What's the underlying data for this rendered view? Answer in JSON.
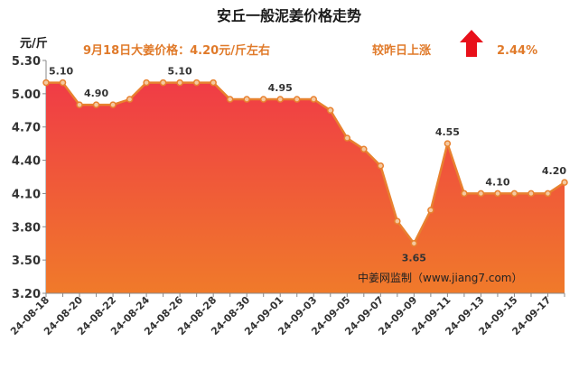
{
  "header": {
    "title": "安丘一般泥姜价格走势",
    "unit": "元/斤",
    "price_note": "9月18日大姜价格：4.20元/斤左右",
    "change_label": "较昨日上涨",
    "change_value": "2.44%",
    "change_direction": "up",
    "source": "中姜网监制（www.jiang7.com）"
  },
  "colors": {
    "line": "#e8812f",
    "area_top": "#f03c46",
    "area_bottom": "#f07a2a",
    "accent_red": "#e8101a",
    "header_text": "#e07a2a"
  },
  "chart_data": {
    "type": "area",
    "ylim": [
      3.2,
      5.3
    ],
    "yticks": [
      "3.20",
      "3.50",
      "3.80",
      "4.10",
      "4.40",
      "4.70",
      "5.00",
      "5.30"
    ],
    "xtick_labels": [
      "24-08-18",
      "24-08-20",
      "24-08-22",
      "24-08-24",
      "24-08-26",
      "24-08-28",
      "24-08-30",
      "24-09-01",
      "24-09-03",
      "24-09-05",
      "24-09-07",
      "24-09-09",
      "24-09-11",
      "24-09-13",
      "24-09-15",
      "24-09-17"
    ],
    "x": [
      "24-08-18",
      "24-08-19",
      "24-08-20",
      "24-08-21",
      "24-08-22",
      "24-08-23",
      "24-08-24",
      "24-08-25",
      "24-08-26",
      "24-08-27",
      "24-08-28",
      "24-08-29",
      "24-08-30",
      "24-08-31",
      "24-09-01",
      "24-09-02",
      "24-09-03",
      "24-09-04",
      "24-09-05",
      "24-09-06",
      "24-09-07",
      "24-09-08",
      "24-09-09",
      "24-09-10",
      "24-09-11",
      "24-09-12",
      "24-09-13",
      "24-09-14",
      "24-09-15",
      "24-09-16",
      "24-09-17",
      "24-09-18"
    ],
    "values": [
      5.1,
      5.1,
      4.9,
      4.9,
      4.9,
      4.95,
      5.1,
      5.1,
      5.1,
      5.1,
      5.1,
      4.95,
      4.95,
      4.95,
      4.95,
      4.95,
      4.95,
      4.85,
      4.6,
      4.5,
      4.35,
      3.85,
      3.65,
      3.95,
      4.55,
      4.1,
      4.1,
      4.1,
      4.1,
      4.1,
      4.1,
      4.2
    ],
    "data_labels": [
      {
        "index": 0,
        "text": "5.10"
      },
      {
        "index": 3,
        "text": "4.90"
      },
      {
        "index": 8,
        "text": "5.10"
      },
      {
        "index": 14,
        "text": "4.95"
      },
      {
        "index": 22,
        "text": "3.65"
      },
      {
        "index": 24,
        "text": "4.55"
      },
      {
        "index": 27,
        "text": "4.10"
      },
      {
        "index": 31,
        "text": "4.20"
      }
    ],
    "grid": false
  }
}
